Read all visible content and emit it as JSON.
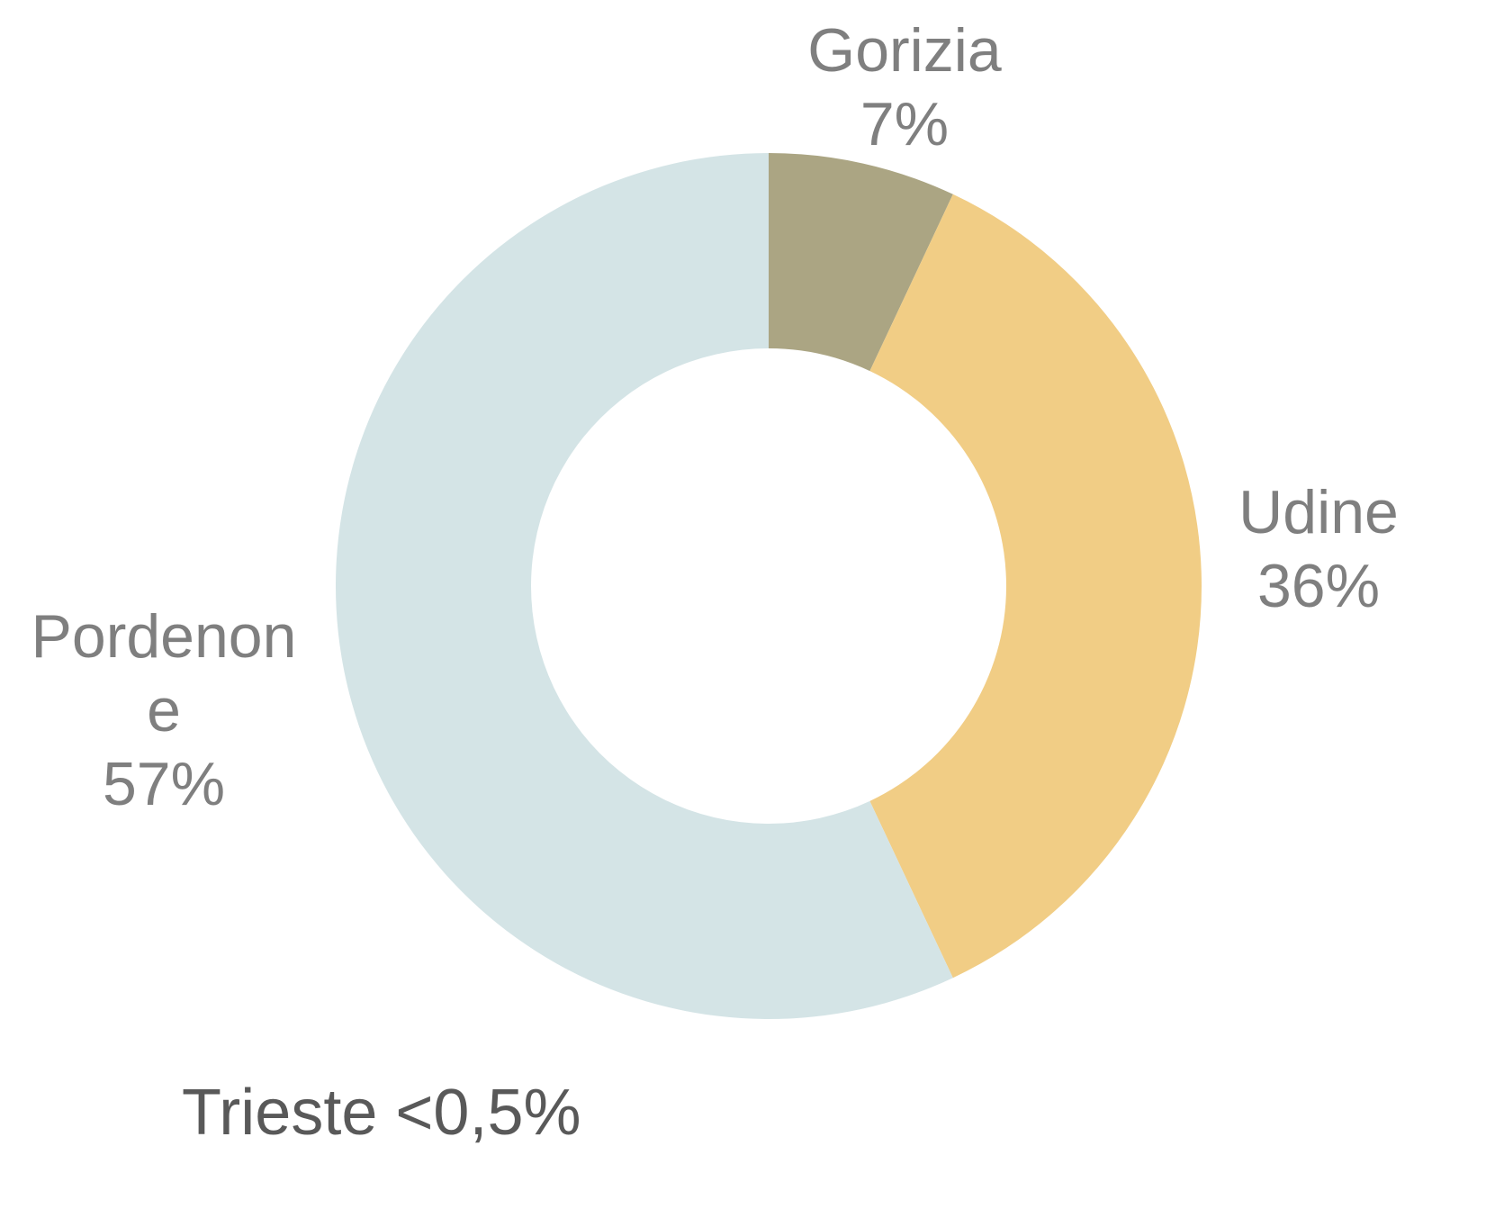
{
  "chart_data": {
    "type": "donut",
    "categories": [
      "Gorizia",
      "Udine",
      "Pordenone"
    ],
    "values": [
      7,
      36,
      57
    ],
    "value_labels": [
      "7%",
      "36%",
      "57%"
    ],
    "colors": [
      "#aba583",
      "#f1cd85",
      "#d4e4e6"
    ],
    "annotation": "Trieste <0,5%"
  }
}
